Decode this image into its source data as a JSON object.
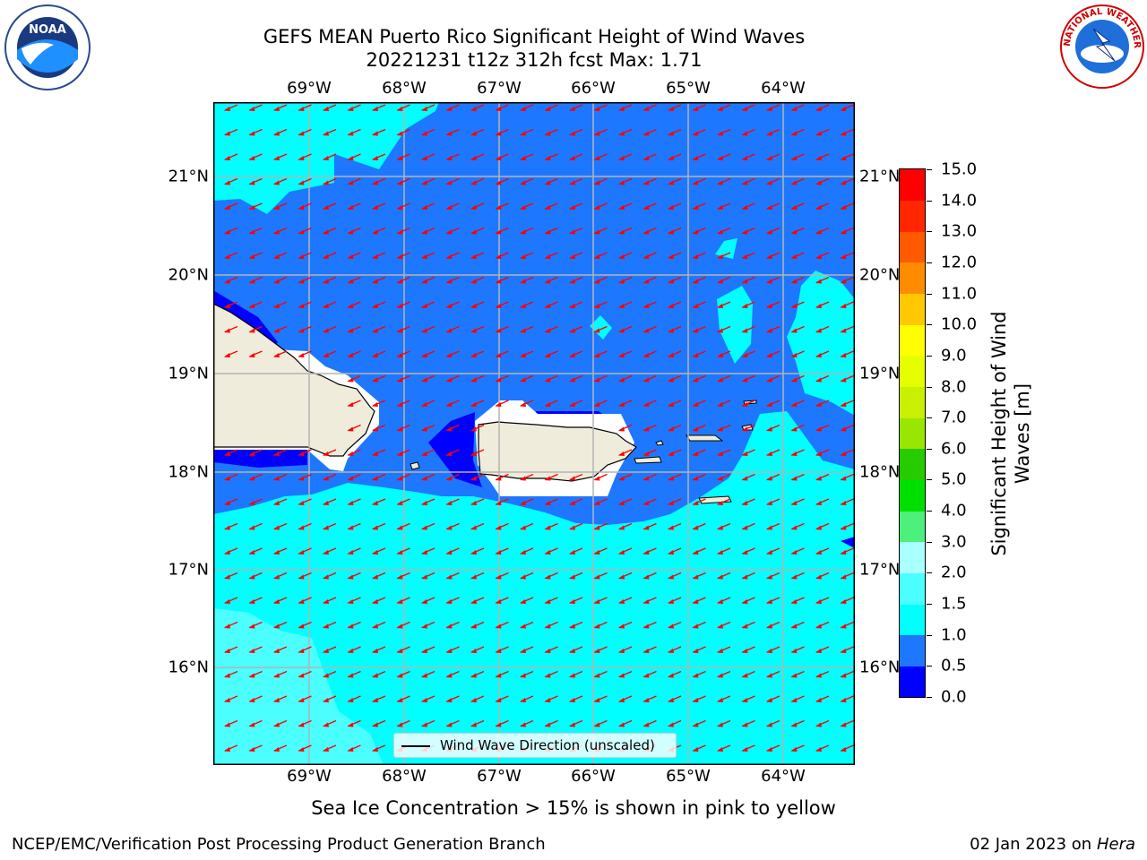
{
  "header": {
    "title": "GEFS MEAN Puerto Rico Significant Height of Wind Waves",
    "subtitle": "20221231 t12z 312h fcst   Max: 1.71"
  },
  "axes": {
    "lon_labels": [
      "69°W",
      "68°W",
      "67°W",
      "66°W",
      "65°W",
      "64°W"
    ],
    "lat_labels": [
      "21°N",
      "20°N",
      "19°N",
      "18°N",
      "17°N",
      "16°N"
    ]
  },
  "legend": {
    "label": "Wind Wave Direction (unscaled)"
  },
  "colorbar": {
    "title_line1": "Significant Height of Wind",
    "title_line2": "Waves [m]",
    "tick_labels": [
      "15.0",
      "14.0",
      "13.0",
      "12.0",
      "11.0",
      "10.0",
      "9.0",
      "8.0",
      "7.0",
      "6.0",
      "5.0",
      "4.0",
      "3.0",
      "2.0",
      "1.5",
      "1.0",
      "0.5",
      "0.0"
    ],
    "colors_bottom_to_top": [
      "#0000ff",
      "#1e78ff",
      "#00ffff",
      "#4bffff",
      "#aaffff",
      "#4cf07a",
      "#00e000",
      "#26cc00",
      "#99e600",
      "#c8f000",
      "#e6ff00",
      "#ffff00",
      "#ffc800",
      "#ff8c00",
      "#ff5a00",
      "#ff2600",
      "#ff0000"
    ]
  },
  "note": "Sea Ice Concentration > 15% is shown in pink to yellow",
  "footer": {
    "left": "NCEP/EMC/Verification Post Processing Product Generation Branch",
    "right_date": "02 Jan 2023 on ",
    "right_host": "Hera"
  },
  "logos": {
    "left": "noaa-logo",
    "left_text": "NOAA",
    "right": "nws-logo",
    "right_text": "NATIONAL WEATHER SERVICE"
  },
  "colors": {
    "arrows": "#ff0000",
    "land": "#efecdc",
    "grid": "#b4b4b4"
  },
  "chart_data": {
    "type": "heatmap",
    "field": "Significant Height of Wind Waves",
    "units": "m",
    "region": "Puerto Rico",
    "lon_range": [
      -70,
      -63.25
    ],
    "lat_range": [
      15,
      21.75
    ],
    "max": 1.71,
    "dominant_wind_wave_direction": "toward southwest",
    "levels": [
      0.0,
      0.5,
      1.0,
      1.5,
      2.0,
      3.0,
      4.0,
      5.0,
      6.0,
      7.0,
      8.0,
      9.0,
      10.0,
      11.0,
      12.0,
      13.0,
      14.0,
      15.0
    ],
    "grid": true
  }
}
